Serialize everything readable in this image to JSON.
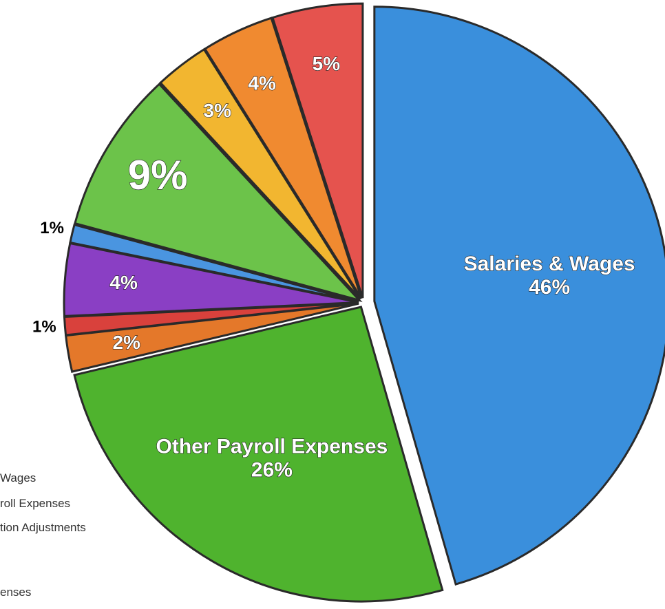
{
  "chart_data": {
    "type": "pie",
    "categories": [
      "Salaries & Wages",
      "Other Payroll Expenses",
      null,
      null,
      null,
      null,
      null,
      null,
      null,
      null
    ],
    "values": [
      46,
      26,
      2,
      1,
      4,
      1,
      9,
      3,
      4,
      5
    ],
    "value_labels": [
      "46%",
      "26%",
      "2%",
      "1%",
      "4%",
      "1%",
      "9%",
      "3%",
      "4%",
      "5%"
    ],
    "colors": [
      "#3a8fdc",
      "#4fb32e",
      "#e4782a",
      "#d9413c",
      "#8a3fc4",
      "#4a95e0",
      "#6cc34a",
      "#f2b630",
      "#f08a30",
      "#e5534e"
    ],
    "legend_fragments": [
      "Wages",
      "roll Expenses",
      "tion Adjustments",
      "enses"
    ]
  }
}
